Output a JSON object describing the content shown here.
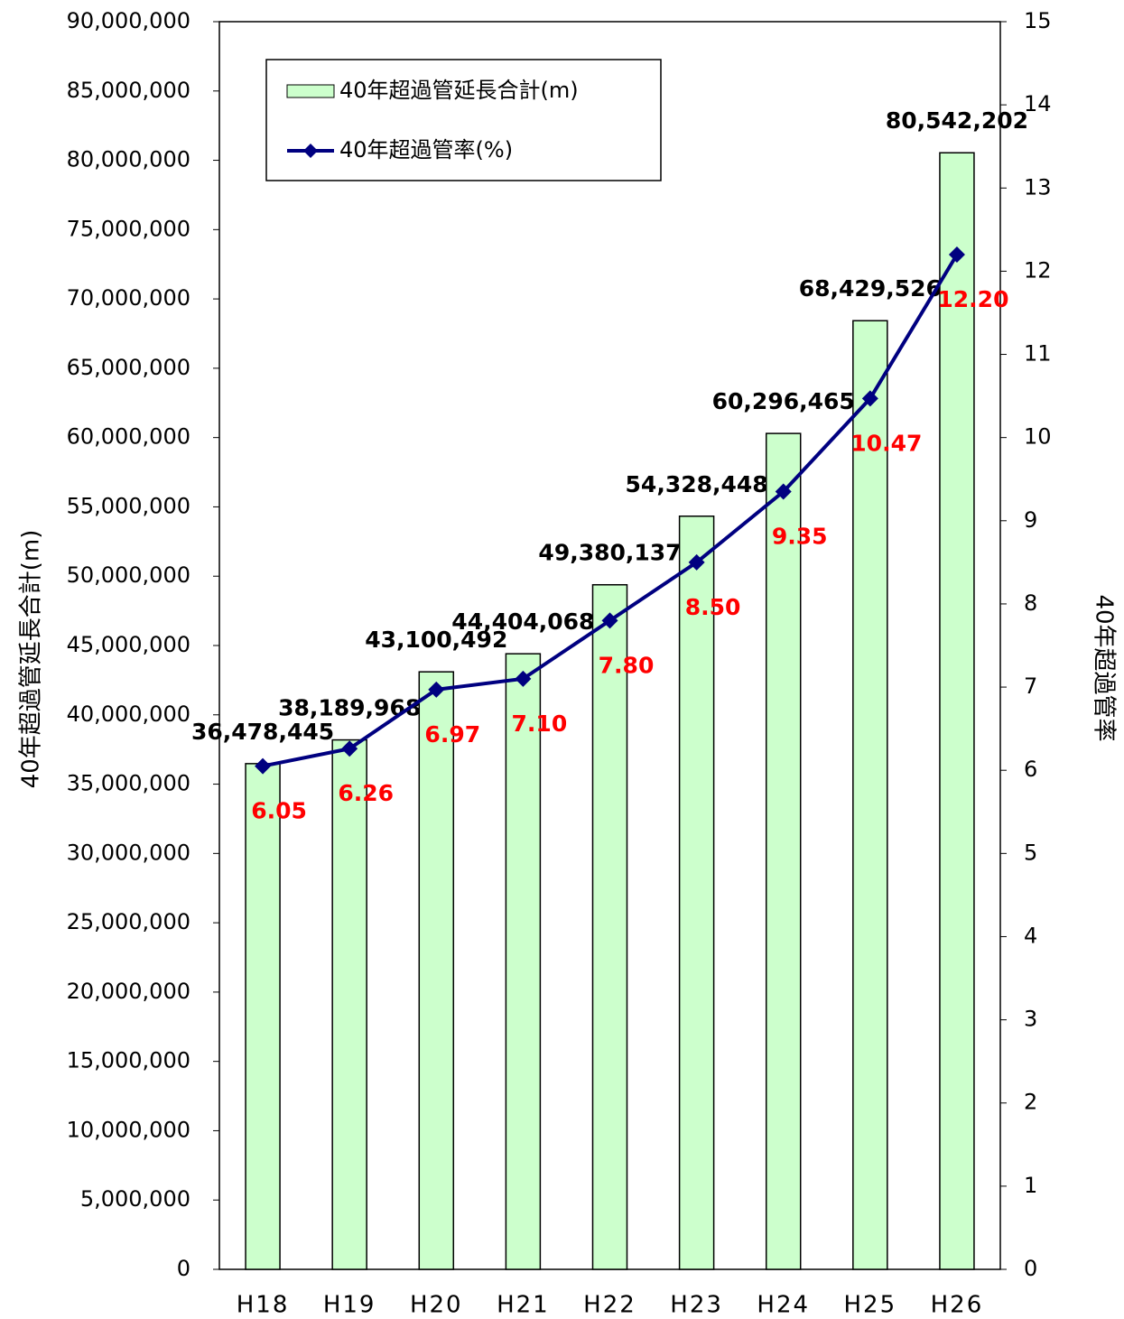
{
  "chart_data": {
    "type": "bar",
    "y_label": "40年超過管延長合計(m)",
    "y2_label": "40年超過管率",
    "categories": [
      "H18",
      "H19",
      "H20",
      "H21",
      "H22",
      "H23",
      "H24",
      "H25",
      "H26"
    ],
    "series": [
      {
        "name": "40年超過管延長合計(m)",
        "type": "bar",
        "color": "#ccffcc",
        "edge_color": "#000000",
        "values": [
          36478445,
          38189968,
          43100492,
          44404068,
          49380137,
          54328448,
          60296465,
          68429526,
          80542202
        ],
        "value_labels": [
          "36,478,445",
          "38,189,968",
          "43,100,492",
          "44,404,068",
          "49,380,137",
          "54,328,448",
          "60,296,465",
          "68,429,526",
          "80,542,202"
        ],
        "label_color": "#000000"
      },
      {
        "name": "40年超過管率(%)",
        "type": "line",
        "axis": "y2",
        "color": "#000080",
        "values": [
          6.05,
          6.26,
          6.97,
          7.1,
          7.8,
          8.5,
          9.35,
          10.47,
          12.2
        ],
        "value_labels": [
          "6.05",
          "6.26",
          "6.97",
          "7.10",
          "7.80",
          "8.50",
          "9.35",
          "10.47",
          "12.20"
        ],
        "label_color": "#ff0000"
      }
    ],
    "ylim": [
      0,
      90000000
    ],
    "yticks": [
      {
        "value": 0,
        "label": "0"
      },
      {
        "value": 5000000,
        "label": "5,000,000"
      },
      {
        "value": 10000000,
        "label": "10,000,000"
      },
      {
        "value": 15000000,
        "label": "15,000,000"
      },
      {
        "value": 20000000,
        "label": "20,000,000"
      },
      {
        "value": 25000000,
        "label": "25,000,000"
      },
      {
        "value": 30000000,
        "label": "30,000,000"
      },
      {
        "value": 35000000,
        "label": "35,000,000"
      },
      {
        "value": 40000000,
        "label": "40,000,000"
      },
      {
        "value": 45000000,
        "label": "45,000,000"
      },
      {
        "value": 50000000,
        "label": "50,000,000"
      },
      {
        "value": 55000000,
        "label": "55,000,000"
      },
      {
        "value": 60000000,
        "label": "60,000,000"
      },
      {
        "value": 65000000,
        "label": "65,000,000"
      },
      {
        "value": 70000000,
        "label": "70,000,000"
      },
      {
        "value": 75000000,
        "label": "75,000,000"
      },
      {
        "value": 80000000,
        "label": "80,000,000"
      },
      {
        "value": 85000000,
        "label": "85,000,000"
      },
      {
        "value": 90000000,
        "label": "90,000,000"
      }
    ],
    "y2lim": [
      0,
      15
    ],
    "y2ticks": [
      0,
      1,
      2,
      3,
      4,
      5,
      6,
      7,
      8,
      9,
      10,
      11,
      12,
      13,
      14,
      15
    ],
    "grid": false,
    "legend": "top-left"
  }
}
